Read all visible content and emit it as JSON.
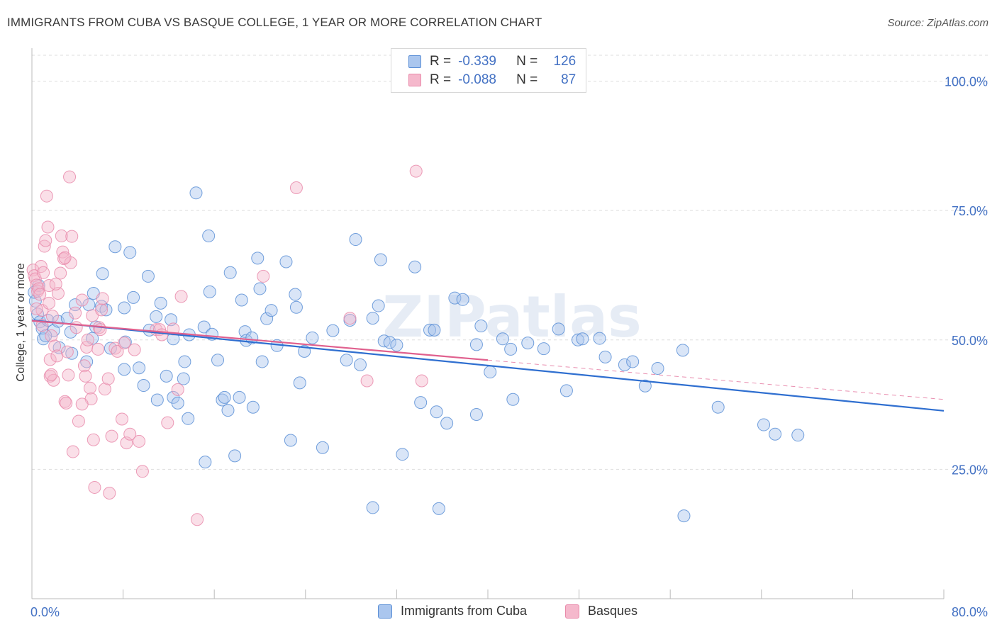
{
  "title": "IMMIGRANTS FROM CUBA VS BASQUE COLLEGE, 1 YEAR OR MORE CORRELATION CHART",
  "source": "Source: ZipAtlas.com",
  "watermark": "ZIPatlas",
  "colors": {
    "blue_fill": "#aac6ee",
    "blue_stroke": "#5b8fd6",
    "blue_line": "#2f6fd0",
    "pink_fill": "#f5b8cc",
    "pink_stroke": "#e98bab",
    "pink_line": "#e0608e",
    "axis_text": "#4472c4",
    "grid": "#dddddd"
  },
  "legend_top": {
    "rows": [
      {
        "r_label": "R =",
        "r_value": "-0.339",
        "n_label": "N =",
        "n_value": "126"
      },
      {
        "r_label": "R =",
        "r_value": "-0.088",
        "n_label": "N =",
        "n_value": "87"
      }
    ]
  },
  "legend_bottom": {
    "items": [
      "Immigrants from Cuba",
      "Basques"
    ]
  },
  "chart_data": {
    "type": "scatter",
    "title": "IMMIGRANTS FROM CUBA VS BASQUE COLLEGE, 1 YEAR OR MORE CORRELATION CHART",
    "xlabel": "",
    "ylabel": "College, 1 year or more",
    "xlim": [
      0,
      80
    ],
    "ylim": [
      0,
      105
    ],
    "x_tick_labels": [
      "0.0%",
      "80.0%"
    ],
    "y_tick_labels": [
      "25.0%",
      "50.0%",
      "75.0%",
      "100.0%"
    ],
    "y_ticks": [
      25,
      50,
      75,
      100
    ],
    "grid": "horizontal dashed",
    "legend_position": "top-center",
    "series": [
      {
        "name": "Immigrants from Cuba",
        "trend": {
          "x0": 0,
          "y0": 53.8,
          "x1": 80,
          "y1": 36.3,
          "dashed_extension": false
        },
        "points": [
          [
            0.3,
            57.5
          ],
          [
            0.5,
            55.0
          ],
          [
            0.7,
            53.5
          ],
          [
            0.9,
            52.2
          ],
          [
            1.0,
            50.2
          ],
          [
            1.4,
            53.8
          ],
          [
            1.9,
            51.8
          ],
          [
            2.3,
            53.6
          ],
          [
            3.1,
            54.2
          ],
          [
            2.4,
            48.5
          ],
          [
            3.5,
            47.4
          ],
          [
            3.4,
            51.5
          ],
          [
            5.0,
            56.8
          ],
          [
            5.4,
            59.0
          ],
          [
            5.6,
            52.5
          ],
          [
            5.3,
            50.3
          ],
          [
            4.8,
            45.8
          ],
          [
            6.1,
            56.5
          ],
          [
            6.2,
            62.8
          ],
          [
            6.5,
            55.8
          ],
          [
            6.9,
            48.4
          ],
          [
            7.3,
            68.0
          ],
          [
            8.1,
            44.3
          ],
          [
            8.1,
            56.2
          ],
          [
            8.2,
            49.6
          ],
          [
            8.6,
            66.9
          ],
          [
            8.9,
            58.2
          ],
          [
            9.4,
            44.6
          ],
          [
            9.8,
            41.2
          ],
          [
            10.2,
            62.3
          ],
          [
            10.3,
            51.9
          ],
          [
            11.0,
            38.4
          ],
          [
            10.9,
            54.5
          ],
          [
            11.3,
            57.1
          ],
          [
            11.8,
            43.0
          ],
          [
            12.2,
            53.9
          ],
          [
            12.4,
            38.9
          ],
          [
            12.4,
            50.2
          ],
          [
            12.8,
            37.8
          ],
          [
            13.3,
            42.5
          ],
          [
            13.4,
            45.8
          ],
          [
            13.7,
            34.8
          ],
          [
            13.8,
            51.0
          ],
          [
            14.4,
            78.4
          ],
          [
            15.1,
            52.5
          ],
          [
            15.2,
            26.4
          ],
          [
            15.5,
            70.1
          ],
          [
            15.6,
            59.3
          ],
          [
            15.8,
            51.1
          ],
          [
            16.3,
            46.1
          ],
          [
            16.7,
            38.4
          ],
          [
            16.9,
            38.9
          ],
          [
            17.2,
            36.4
          ],
          [
            17.4,
            63.0
          ],
          [
            17.8,
            27.6
          ],
          [
            18.2,
            38.9
          ],
          [
            18.4,
            57.7
          ],
          [
            18.7,
            51.6
          ],
          [
            18.8,
            49.9
          ],
          [
            19.3,
            50.4
          ],
          [
            19.4,
            37.0
          ],
          [
            19.8,
            65.8
          ],
          [
            20.0,
            59.9
          ],
          [
            20.2,
            45.8
          ],
          [
            20.6,
            54.1
          ],
          [
            21.0,
            55.7
          ],
          [
            21.5,
            48.9
          ],
          [
            22.3,
            65.1
          ],
          [
            22.7,
            30.6
          ],
          [
            23.1,
            58.8
          ],
          [
            23.2,
            56.3
          ],
          [
            23.5,
            41.7
          ],
          [
            23.9,
            47.8
          ],
          [
            24.6,
            50.4
          ],
          [
            25.5,
            29.2
          ],
          [
            26.4,
            51.8
          ],
          [
            27.6,
            46.1
          ],
          [
            27.9,
            53.8
          ],
          [
            28.4,
            69.4
          ],
          [
            28.8,
            45.2
          ],
          [
            29.9,
            54.2
          ],
          [
            30.4,
            56.6
          ],
          [
            30.6,
            65.5
          ],
          [
            30.9,
            49.8
          ],
          [
            31.4,
            49.5
          ],
          [
            32.0,
            49.0
          ],
          [
            32.5,
            27.9
          ],
          [
            33.6,
            64.1
          ],
          [
            34.1,
            37.9
          ],
          [
            34.9,
            51.9
          ],
          [
            35.3,
            51.9
          ],
          [
            35.5,
            36.1
          ],
          [
            36.4,
            33.9
          ],
          [
            37.1,
            58.1
          ],
          [
            37.8,
            57.8
          ],
          [
            39.0,
            49.1
          ],
          [
            39.0,
            35.6
          ],
          [
            39.4,
            52.7
          ],
          [
            40.2,
            43.8
          ],
          [
            41.3,
            50.2
          ],
          [
            42.0,
            48.2
          ],
          [
            42.2,
            38.5
          ],
          [
            43.5,
            49.4
          ],
          [
            44.9,
            48.3
          ],
          [
            46.2,
            52.1
          ],
          [
            46.9,
            40.2
          ],
          [
            47.9,
            50.0
          ],
          [
            48.3,
            50.2
          ],
          [
            49.8,
            50.3
          ],
          [
            50.3,
            46.7
          ],
          [
            52.0,
            45.2
          ],
          [
            52.7,
            45.8
          ],
          [
            53.8,
            41.1
          ],
          [
            54.9,
            44.5
          ],
          [
            57.1,
            48.0
          ],
          [
            60.2,
            37.0
          ],
          [
            64.2,
            33.6
          ],
          [
            65.2,
            31.8
          ],
          [
            67.2,
            31.6
          ],
          [
            57.2,
            16.0
          ],
          [
            35.7,
            17.4
          ],
          [
            29.9,
            17.6
          ],
          [
            0.2,
            59.2
          ],
          [
            0.6,
            60.5
          ],
          [
            1.2,
            50.8
          ],
          [
            3.8,
            56.8
          ]
        ]
      },
      {
        "name": "Basques",
        "trend": {
          "x0": 0,
          "y0": 53.7,
          "x1": 80,
          "y1": 38.5,
          "solid_until_x": 40,
          "dashed_extension": true
        },
        "points": [
          [
            0.1,
            63.5
          ],
          [
            0.2,
            62.4
          ],
          [
            0.3,
            61.8
          ],
          [
            0.4,
            60.6
          ],
          [
            0.5,
            59.4
          ],
          [
            0.6,
            59.9
          ],
          [
            0.7,
            58.8
          ],
          [
            0.8,
            64.2
          ],
          [
            0.9,
            55.7
          ],
          [
            1.0,
            63.0
          ],
          [
            1.1,
            68.1
          ],
          [
            1.2,
            69.2
          ],
          [
            1.3,
            77.8
          ],
          [
            1.4,
            71.8
          ],
          [
            1.5,
            60.5
          ],
          [
            1.5,
            57.1
          ],
          [
            1.6,
            46.2
          ],
          [
            1.6,
            43.0
          ],
          [
            1.7,
            50.8
          ],
          [
            1.8,
            54.6
          ],
          [
            1.9,
            42.2
          ],
          [
            2.0,
            48.8
          ],
          [
            2.2,
            46.9
          ],
          [
            2.3,
            59.0
          ],
          [
            2.5,
            62.9
          ],
          [
            2.6,
            70.1
          ],
          [
            2.7,
            67.0
          ],
          [
            2.8,
            65.7
          ],
          [
            2.9,
            38.1
          ],
          [
            3.0,
            37.8
          ],
          [
            3.1,
            47.7
          ],
          [
            3.2,
            43.2
          ],
          [
            3.3,
            81.5
          ],
          [
            3.4,
            64.9
          ],
          [
            3.5,
            70.0
          ],
          [
            3.6,
            28.4
          ],
          [
            3.8,
            55.2
          ],
          [
            3.9,
            52.4
          ],
          [
            4.1,
            34.3
          ],
          [
            4.4,
            57.7
          ],
          [
            4.6,
            45.0
          ],
          [
            4.7,
            43.0
          ],
          [
            4.8,
            48.6
          ],
          [
            4.9,
            50.0
          ],
          [
            5.1,
            40.7
          ],
          [
            5.2,
            38.6
          ],
          [
            5.3,
            54.7
          ],
          [
            5.4,
            30.7
          ],
          [
            5.5,
            21.5
          ],
          [
            5.8,
            48.2
          ],
          [
            5.9,
            52.4
          ],
          [
            6.0,
            52.0
          ],
          [
            6.1,
            55.8
          ],
          [
            6.2,
            58.0
          ],
          [
            6.4,
            40.5
          ],
          [
            6.7,
            42.5
          ],
          [
            6.8,
            20.4
          ],
          [
            7.0,
            31.4
          ],
          [
            7.3,
            48.4
          ],
          [
            7.5,
            47.8
          ],
          [
            7.9,
            34.7
          ],
          [
            8.1,
            49.4
          ],
          [
            8.3,
            30.1
          ],
          [
            8.6,
            31.8
          ],
          [
            9.0,
            48.1
          ],
          [
            9.4,
            30.4
          ],
          [
            9.7,
            24.6
          ],
          [
            10.9,
            52.0
          ],
          [
            11.2,
            52.0
          ],
          [
            11.4,
            51.0
          ],
          [
            11.9,
            34.0
          ],
          [
            12.4,
            52.1
          ],
          [
            12.8,
            40.4
          ],
          [
            13.1,
            58.4
          ],
          [
            14.5,
            15.3
          ],
          [
            20.3,
            62.3
          ],
          [
            23.2,
            79.4
          ],
          [
            27.9,
            54.2
          ],
          [
            29.4,
            42.1
          ],
          [
            33.7,
            82.6
          ],
          [
            34.2,
            42.1
          ],
          [
            0.4,
            56.0
          ],
          [
            0.9,
            52.8
          ],
          [
            2.1,
            60.8
          ],
          [
            1.7,
            43.3
          ],
          [
            4.4,
            37.6
          ],
          [
            2.9,
            65.9
          ]
        ]
      }
    ]
  }
}
